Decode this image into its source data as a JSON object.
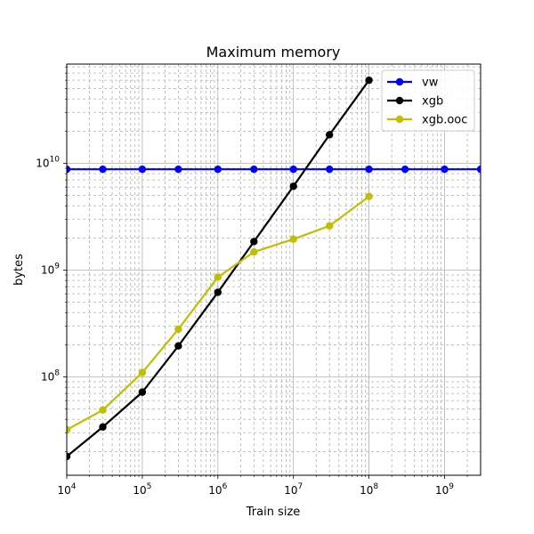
{
  "chart_data": {
    "type": "line",
    "title": "Maximum memory",
    "xlabel": "Train size",
    "ylabel": "bytes",
    "xscale": "log",
    "yscale": "log",
    "xlim": [
      10000,
      3000000000
    ],
    "ylim": [
      12000000,
      85000000000
    ],
    "grid": true,
    "legend_position": "top-right",
    "x_ticks": [
      {
        "value": 10000,
        "base": "10",
        "exp": "4"
      },
      {
        "value": 100000,
        "base": "10",
        "exp": "5"
      },
      {
        "value": 1000000,
        "base": "10",
        "exp": "6"
      },
      {
        "value": 10000000,
        "base": "10",
        "exp": "7"
      },
      {
        "value": 100000000,
        "base": "10",
        "exp": "8"
      },
      {
        "value": 1000000000,
        "base": "10",
        "exp": "9"
      }
    ],
    "y_ticks": [
      {
        "value": 100000000,
        "base": "10",
        "exp": "8"
      },
      {
        "value": 1000000000,
        "base": "10",
        "exp": "9"
      },
      {
        "value": 10000000000,
        "base": "10",
        "exp": "10"
      }
    ],
    "series": [
      {
        "name": "vw",
        "color": "#0000ff",
        "x": [
          10000,
          30000,
          100000,
          300000,
          1000000,
          3000000,
          10000000,
          30000000,
          100000000,
          300000000,
          1000000000,
          3000000000
        ],
        "y": [
          8800000000,
          8800000000,
          8800000000,
          8800000000,
          8800000000,
          8800000000,
          8800000000,
          8800000000,
          8800000000,
          8800000000,
          8800000000,
          8800000000
        ]
      },
      {
        "name": "xgb",
        "color": "#000000",
        "x": [
          10000,
          30000,
          100000,
          300000,
          1000000,
          3000000,
          10000000,
          30000000,
          100000000
        ],
        "y": [
          18000000,
          34000000,
          72000000,
          195000000,
          620000000,
          1850000000,
          6100000000,
          18500000000,
          60000000000
        ]
      },
      {
        "name": "xgb.ooc",
        "color": "#bfbf00",
        "x": [
          10000,
          30000,
          100000,
          300000,
          1000000,
          3000000,
          10000000,
          30000000,
          100000000
        ],
        "y": [
          32000000,
          49000000,
          110000000,
          280000000,
          860000000,
          1480000000,
          1950000000,
          2600000000,
          4900000000
        ]
      }
    ]
  }
}
